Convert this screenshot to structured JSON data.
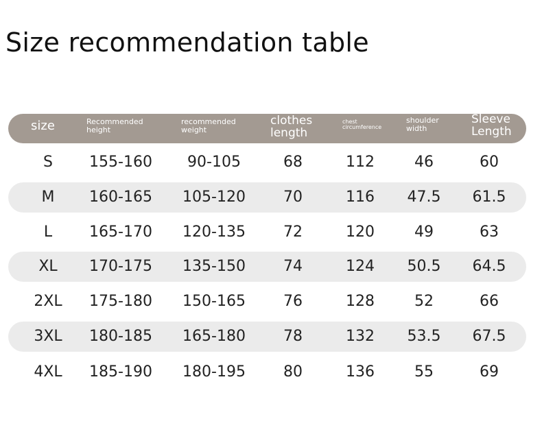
{
  "title": "Size recommendation table",
  "colors": {
    "header_bg": "#a39a92",
    "stripe_bg": "#ebebeb"
  },
  "headers": [
    "size",
    "Recommended height",
    "recommended weight",
    "clothes length",
    "chest circumference",
    "shoulder width",
    "Sleeve Length"
  ],
  "rows": [
    [
      "S",
      "155-160",
      "90-105",
      "68",
      "112",
      "46",
      "60"
    ],
    [
      "M",
      "160-165",
      "105-120",
      "70",
      "116",
      "47.5",
      "61.5"
    ],
    [
      "L",
      "165-170",
      "120-135",
      "72",
      "120",
      "49",
      "63"
    ],
    [
      "XL",
      "170-175",
      "135-150",
      "74",
      "124",
      "50.5",
      "64.5"
    ],
    [
      "2XL",
      "175-180",
      "150-165",
      "76",
      "128",
      "52",
      "66"
    ],
    [
      "3XL",
      "180-185",
      "165-180",
      "78",
      "132",
      "53.5",
      "67.5"
    ],
    [
      "4XL",
      "185-190",
      "180-195",
      "80",
      "136",
      "55",
      "69"
    ]
  ]
}
